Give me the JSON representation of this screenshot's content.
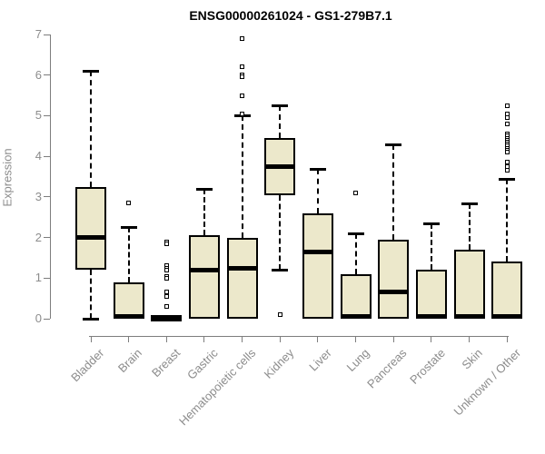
{
  "colors": {
    "background": "#ffffff",
    "box_fill": "#ece8cb",
    "box_border": "#000000",
    "median": "#000000",
    "axis_line": "#7d7d7d",
    "axis_text": "#8c8c8c",
    "title_text": "#000000"
  },
  "chart_data": {
    "type": "boxplot",
    "title": "ENSG00000261024 - GS1-279B7.1",
    "xlabel": "",
    "ylabel": "Expression",
    "ylim": [
      0,
      7
    ],
    "yticks": [
      0,
      1,
      2,
      3,
      4,
      5,
      6,
      7
    ],
    "grid": false,
    "legend": "none",
    "x_label_rotation_deg": 45,
    "boxes": [
      {
        "category": "Bladder",
        "low": 0,
        "q1": 1.2,
        "median": 2.0,
        "q3": 3.25,
        "high": 6.1,
        "outliers": []
      },
      {
        "category": "Brain",
        "low": 0,
        "q1": 0,
        "median": 0.05,
        "q3": 0.9,
        "high": 2.25,
        "outliers": [
          2.85
        ]
      },
      {
        "category": "Breast",
        "low": 0,
        "q1": 0,
        "median": 0.03,
        "q3": 0.05,
        "high": 0.05,
        "outliers": [
          1.9,
          1.85,
          1.3,
          1.25,
          1.2,
          1.05,
          1.0,
          0.65,
          0.55,
          0.3
        ]
      },
      {
        "category": "Gastric",
        "low": 0,
        "q1": 0,
        "median": 1.2,
        "q3": 2.05,
        "high": 3.2,
        "outliers": []
      },
      {
        "category": "Hematopoietic cells",
        "low": 0,
        "q1": 0,
        "median": 1.25,
        "q3": 2.0,
        "high": 5.0,
        "outliers": [
          6.9,
          6.2,
          6.0,
          5.95,
          5.5,
          5.05
        ]
      },
      {
        "category": "Kidney",
        "low": 1.2,
        "q1": 3.05,
        "median": 3.75,
        "q3": 4.45,
        "high": 5.25,
        "outliers": [
          0.1
        ]
      },
      {
        "category": "Liver",
        "low": 0,
        "q1": 0,
        "median": 1.65,
        "q3": 2.6,
        "high": 3.7,
        "outliers": []
      },
      {
        "category": "Lung",
        "low": 0,
        "q1": 0,
        "median": 0.05,
        "q3": 1.1,
        "high": 2.1,
        "outliers": [
          3.1
        ]
      },
      {
        "category": "Pancreas",
        "low": 0,
        "q1": 0,
        "median": 0.65,
        "q3": 1.95,
        "high": 4.3,
        "outliers": []
      },
      {
        "category": "Prostate",
        "low": 0,
        "q1": 0,
        "median": 0.05,
        "q3": 1.2,
        "high": 2.35,
        "outliers": []
      },
      {
        "category": "Skin",
        "low": 0,
        "q1": 0,
        "median": 0.05,
        "q3": 1.7,
        "high": 2.85,
        "outliers": []
      },
      {
        "category": "Unknown / Other",
        "low": 0,
        "q1": 0,
        "median": 0.05,
        "q3": 1.4,
        "high": 3.45,
        "outliers": [
          5.25,
          5.05,
          4.95,
          4.8,
          4.55,
          4.5,
          4.45,
          4.4,
          4.35,
          4.3,
          4.25,
          4.2,
          4.15,
          4.1,
          3.85,
          3.75,
          3.65
        ]
      }
    ]
  }
}
